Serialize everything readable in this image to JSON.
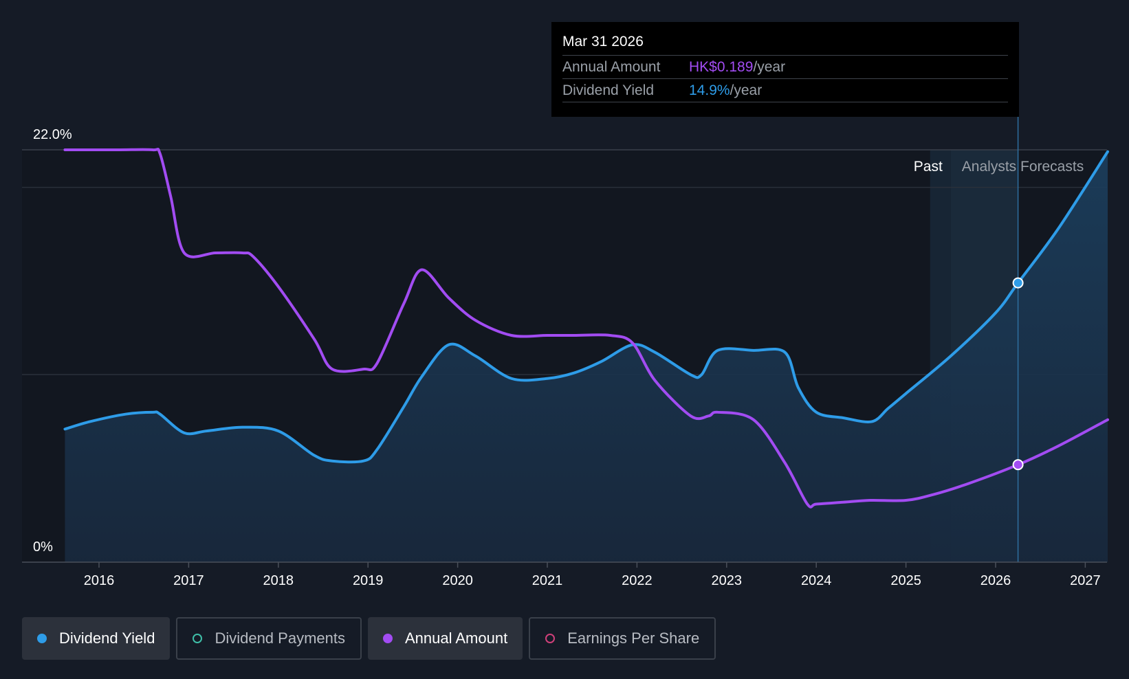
{
  "tooltip": {
    "date": "Mar 31 2026",
    "annual_label": "Annual Amount",
    "annual_value": "HK$0.189",
    "annual_unit": "/year",
    "yield_label": "Dividend Yield",
    "yield_value": "14.9%",
    "yield_unit": "/year"
  },
  "regions": {
    "past": "Past",
    "forecast": "Analysts Forecasts"
  },
  "legend": [
    {
      "label": "Dividend Yield",
      "color": "#2e9ce8",
      "style": "filled-dot",
      "active": true
    },
    {
      "label": "Dividend Payments",
      "color": "#3fbfa8",
      "style": "ring",
      "active": false
    },
    {
      "label": "Annual Amount",
      "color": "#a24cf2",
      "style": "filled-dot",
      "active": true
    },
    {
      "label": "Earnings Per Share",
      "color": "#d0407a",
      "style": "ring",
      "active": false
    }
  ],
  "chart_data": {
    "type": "line",
    "title": "",
    "xlabel": "",
    "ylabel": "",
    "ylim": [
      0,
      22.0
    ],
    "xlim": [
      2015.6,
      2027.25
    ],
    "y_tick_labels": [
      "22.0%",
      "0%"
    ],
    "x_tick_labels": [
      "2016",
      "2017",
      "2018",
      "2019",
      "2020",
      "2021",
      "2022",
      "2023",
      "2024",
      "2025",
      "2026",
      "2027"
    ],
    "past_forecast_boundary": 2025.5,
    "highlight_x": 2026.25,
    "series": [
      {
        "name": "Dividend Yield",
        "color": "#2e9ce8",
        "area": true,
        "x": [
          2015.62,
          2015.9,
          2016.3,
          2016.6,
          2016.68,
          2016.95,
          2017.2,
          2017.6,
          2018.0,
          2018.4,
          2018.6,
          2018.95,
          2019.1,
          2019.4,
          2019.6,
          2019.9,
          2020.2,
          2020.6,
          2021.0,
          2021.3,
          2021.6,
          2021.95,
          2022.2,
          2022.6,
          2022.72,
          2022.9,
          2023.3,
          2023.65,
          2023.8,
          2024.0,
          2024.3,
          2024.62,
          2024.8,
          2025.0,
          2025.5,
          2026.0,
          2026.25,
          2026.7,
          2027.25
        ],
        "values": [
          7.1,
          7.5,
          7.9,
          8.0,
          7.9,
          6.9,
          7.0,
          7.2,
          7.0,
          5.7,
          5.4,
          5.4,
          6.0,
          8.3,
          9.9,
          11.6,
          11.0,
          9.8,
          9.8,
          10.1,
          10.7,
          11.6,
          11.2,
          10.0,
          10.0,
          11.3,
          11.3,
          11.2,
          9.3,
          8.0,
          7.7,
          7.5,
          8.2,
          9.0,
          11.0,
          13.3,
          14.9,
          17.8,
          21.9
        ]
      },
      {
        "name": "Annual Amount",
        "color": "#a24cf2",
        "area": false,
        "x": [
          2015.62,
          2016.2,
          2016.6,
          2016.68,
          2016.8,
          2016.95,
          2017.3,
          2017.6,
          2017.72,
          2018.0,
          2018.4,
          2018.6,
          2018.95,
          2019.1,
          2019.4,
          2019.6,
          2019.9,
          2020.2,
          2020.6,
          2021.0,
          2021.3,
          2021.7,
          2021.95,
          2022.2,
          2022.6,
          2022.8,
          2022.9,
          2023.3,
          2023.65,
          2023.9,
          2024.0,
          2024.3,
          2024.6,
          2025.0,
          2025.3,
          2025.7,
          2026.25,
          2026.7,
          2027.25
        ],
        "values": [
          22.0,
          22.0,
          22.0,
          21.8,
          19.5,
          16.5,
          16.5,
          16.5,
          16.3,
          14.7,
          11.9,
          10.3,
          10.3,
          10.6,
          13.8,
          15.6,
          14.1,
          12.9,
          12.1,
          12.1,
          12.1,
          12.1,
          11.7,
          9.7,
          7.8,
          7.8,
          8.0,
          7.6,
          5.3,
          3.1,
          3.1,
          3.2,
          3.3,
          3.3,
          3.6,
          4.2,
          5.2,
          6.2,
          7.6
        ]
      }
    ]
  }
}
